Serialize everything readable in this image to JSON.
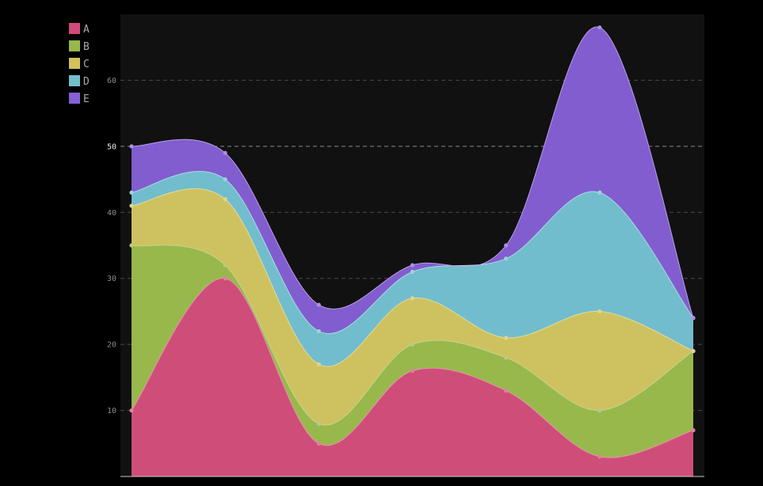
{
  "chart_data": {
    "type": "area",
    "stacked": true,
    "interpolation": "smooth",
    "x": [
      0,
      1,
      2,
      3,
      4,
      5,
      6
    ],
    "ylim": [
      0,
      70
    ],
    "y_ticks": [
      10,
      20,
      30,
      40,
      50,
      60
    ],
    "highlighted_tick": 50,
    "grid": true,
    "legend_position": "top-left, outside plot",
    "series": [
      {
        "name": "A",
        "values": [
          10,
          30,
          5,
          16,
          13,
          3,
          7
        ],
        "color": "#d14a7b"
      },
      {
        "name": "B",
        "values": [
          25,
          2,
          3,
          4,
          5,
          7,
          12
        ],
        "color": "#97b84a"
      },
      {
        "name": "C",
        "values": [
          6,
          10,
          9,
          7,
          3,
          15,
          0
        ],
        "color": "#d1c25c"
      },
      {
        "name": "D",
        "values": [
          2,
          3,
          5,
          4,
          12,
          18,
          5
        ],
        "color": "#72c0cc"
      },
      {
        "name": "E",
        "values": [
          7,
          4,
          4,
          1,
          2,
          25,
          0
        ],
        "color": "#8660d6"
      }
    ]
  }
}
